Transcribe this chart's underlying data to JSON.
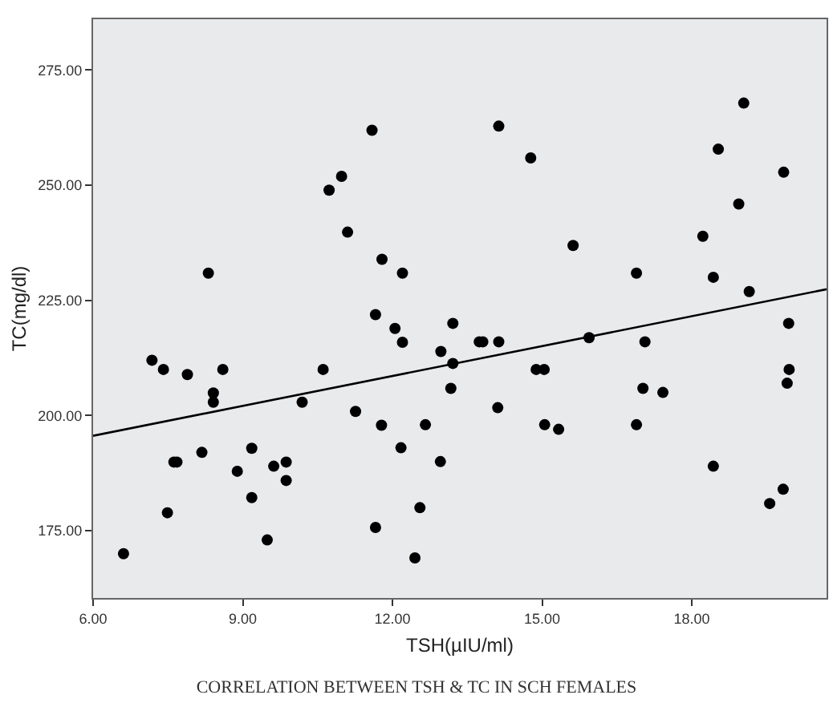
{
  "chart_data": {
    "type": "scatter",
    "title": "CORRELATION BETWEEN TSH & TC IN SCH FEMALES",
    "xlabel": "TSH(µIU/ml)",
    "ylabel": "TC(mg/dl)",
    "xlim": [
      6,
      20.7
    ],
    "ylim": [
      160.4,
      286
    ],
    "xticks": [
      {
        "value": 6,
        "label": "6.00"
      },
      {
        "value": 9,
        "label": "9.00"
      },
      {
        "value": 12,
        "label": "12.00"
      },
      {
        "value": 15,
        "label": "15.00"
      },
      {
        "value": 18,
        "label": "18.00"
      }
    ],
    "yticks": [
      {
        "value": 175,
        "label": "175.00"
      },
      {
        "value": 200,
        "label": "200.00"
      },
      {
        "value": 225,
        "label": "225.00"
      },
      {
        "value": 250,
        "label": "250.00"
      },
      {
        "value": 275,
        "label": "275.00"
      }
    ],
    "grid": false,
    "marker": "circle",
    "series": [
      {
        "color": "#000000",
        "x": [
          11.59,
          10.98,
          10.73,
          11.1,
          8.31,
          11.79,
          12.2,
          11.66,
          12.05,
          12.2,
          14.13,
          14.77,
          19.04,
          18.53,
          19.84,
          18.94,
          15.62,
          18.22,
          16.89,
          18.43,
          19.15,
          13.21,
          19.94,
          15.94,
          17.06,
          12.97,
          13.74,
          13.81,
          14.13,
          13.21,
          14.88,
          15.04,
          19.95,
          13.17,
          14.11,
          17.02,
          17.42,
          19.91,
          12.66,
          15.05,
          15.33,
          16.89,
          12.17,
          12.96,
          18.43,
          12.55,
          12.45,
          19.56,
          19.83,
          7.18,
          7.41,
          7.89,
          8.6,
          8.41,
          8.41,
          10.19,
          10.61,
          11.26,
          11.78,
          8.18,
          9.18,
          7.62,
          7.68,
          8.89,
          9.62,
          9.87,
          9.87,
          9.18,
          7.49,
          9.49,
          6.61,
          11.66
        ],
        "values": [
          261.9,
          251.9,
          248.9,
          239.8,
          230.9,
          233.9,
          230.9,
          221.9,
          218.9,
          215.9,
          262.8,
          255.9,
          267.8,
          257.8,
          252.8,
          245.9,
          236.9,
          238.9,
          230.9,
          230.0,
          226.9,
          220.0,
          220.0,
          216.9,
          216.0,
          213.9,
          216.0,
          216.0,
          216.0,
          211.3,
          210.0,
          210.0,
          210.0,
          205.9,
          201.7,
          205.9,
          205.0,
          207.0,
          198.0,
          198.0,
          197.0,
          198.0,
          193.0,
          190.0,
          189.0,
          180.0,
          169.1,
          180.9,
          184.0,
          212.0,
          210.0,
          208.9,
          210.0,
          204.9,
          202.9,
          202.9,
          210.0,
          200.9,
          197.9,
          192.0,
          192.9,
          189.9,
          189.9,
          187.9,
          189.0,
          189.9,
          185.9,
          182.2,
          178.9,
          173.0,
          170.0,
          175.7
        ]
      },
      {
        "type": "line",
        "color": "#000000",
        "x": [
          6,
          20.7
        ],
        "values": [
          195.6,
          227.4
        ],
        "line_style": "solid",
        "marker": "none"
      }
    ]
  }
}
